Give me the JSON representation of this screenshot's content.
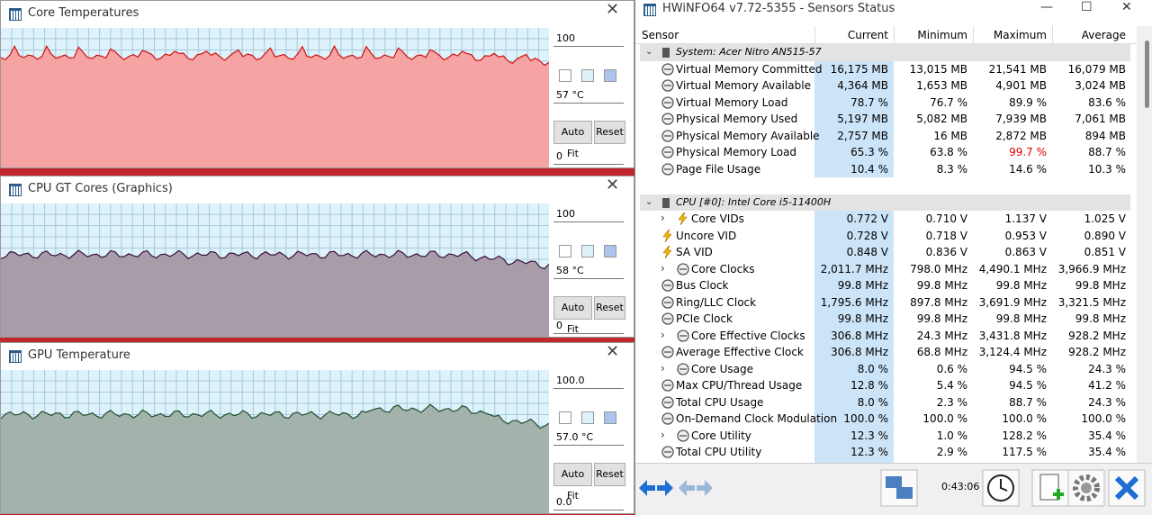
{
  "graphs": [
    {
      "title": "Core Temperatures",
      "max": "100",
      "current": "57 °C",
      "auto_fit": "Auto Fit",
      "reset": "Reset",
      "min": "0",
      "fill": "#f6a3a3",
      "line": "#d01010"
    },
    {
      "title": "CPU GT Cores (Graphics)",
      "max": "100",
      "current": "58 °C",
      "auto_fit": "Auto Fit",
      "reset": "Reset",
      "min": "0",
      "fill": "#a99ca9",
      "line": "#3a1040"
    },
    {
      "title": "GPU Temperature",
      "max": "100.0",
      "current": "57.0 °C",
      "auto_fit": "Auto Fit",
      "reset": "Reset",
      "min": "0.0",
      "fill": "#a3b2aa",
      "line": "#1f5030"
    }
  ],
  "sensors": {
    "title": "HWiNFO64 v7.72-5355 - Sensors Status",
    "columns": [
      "Sensor",
      "Current",
      "Minimum",
      "Maximum",
      "Average"
    ],
    "groups": [
      {
        "name": "System: Acer Nitro AN515-57",
        "rows": [
          {
            "cells": [
              "Virtual Memory Committed",
              "16,175 MB",
              "13,015 MB",
              "21,541 MB",
              "16,079 MB"
            ],
            "icon": "clock"
          },
          {
            "cells": [
              "Virtual Memory Available",
              "4,364 MB",
              "1,653 MB",
              "4,901 MB",
              "3,024 MB"
            ],
            "icon": "clock"
          },
          {
            "cells": [
              "Virtual Memory Load",
              "78.7 %",
              "76.7 %",
              "89.9 %",
              "83.6 %"
            ],
            "icon": "clock"
          },
          {
            "cells": [
              "Physical Memory Used",
              "5,197 MB",
              "5,082 MB",
              "7,939 MB",
              "7,061 MB"
            ],
            "icon": "clock"
          },
          {
            "cells": [
              "Physical Memory Available",
              "2,757 MB",
              "16 MB",
              "2,872 MB",
              "894 MB"
            ],
            "icon": "clock"
          },
          {
            "cells": [
              "Physical Memory Load",
              "65.3 %",
              "63.8 %",
              "99.7 %",
              "88.7 %"
            ],
            "icon": "clock",
            "alert": "maximum"
          },
          {
            "cells": [
              "Page File Usage",
              "10.4 %",
              "8.3 %",
              "14.6 %",
              "10.3 %"
            ],
            "icon": "clock"
          }
        ]
      },
      {
        "name": "CPU [#0]: Intel Core i5-11400H",
        "rows": [
          {
            "cells": [
              "Core VIDs",
              "0.772 V",
              "0.710 V",
              "1.137 V",
              "1.025 V"
            ],
            "icon": "bolt",
            "expand": true
          },
          {
            "cells": [
              "Uncore VID",
              "0.728 V",
              "0.718 V",
              "0.953 V",
              "0.890 V"
            ],
            "icon": "bolt"
          },
          {
            "cells": [
              "SA VID",
              "0.848 V",
              "0.836 V",
              "0.863 V",
              "0.851 V"
            ],
            "icon": "bolt"
          },
          {
            "cells": [
              "Core Clocks",
              "2,011.7 MHz",
              "798.0 MHz",
              "4,490.1 MHz",
              "3,966.9 MHz"
            ],
            "icon": "clock",
            "expand": true
          },
          {
            "cells": [
              "Bus Clock",
              "99.8 MHz",
              "99.8 MHz",
              "99.8 MHz",
              "99.8 MHz"
            ],
            "icon": "clock"
          },
          {
            "cells": [
              "Ring/LLC Clock",
              "1,795.6 MHz",
              "897.8 MHz",
              "3,691.9 MHz",
              "3,321.5 MHz"
            ],
            "icon": "clock"
          },
          {
            "cells": [
              "PCIe Clock",
              "99.8 MHz",
              "99.8 MHz",
              "99.8 MHz",
              "99.8 MHz"
            ],
            "icon": "clock"
          },
          {
            "cells": [
              "Core Effective Clocks",
              "306.8 MHz",
              "24.3 MHz",
              "3,431.8 MHz",
              "928.2 MHz"
            ],
            "icon": "clock",
            "expand": true
          },
          {
            "cells": [
              "Average Effective Clock",
              "306.8 MHz",
              "68.8 MHz",
              "3,124.4 MHz",
              "928.2 MHz"
            ],
            "icon": "clock"
          },
          {
            "cells": [
              "Core Usage",
              "8.0 %",
              "0.6 %",
              "94.5 %",
              "24.3 %"
            ],
            "icon": "clock",
            "expand": true
          },
          {
            "cells": [
              "Max CPU/Thread Usage",
              "12.8 %",
              "5.4 %",
              "94.5 %",
              "41.2 %"
            ],
            "icon": "clock"
          },
          {
            "cells": [
              "Total CPU Usage",
              "8.0 %",
              "2.3 %",
              "88.7 %",
              "24.3 %"
            ],
            "icon": "clock"
          },
          {
            "cells": [
              "On-Demand Clock Modulation",
              "100.0 %",
              "100.0 %",
              "100.0 %",
              "100.0 %"
            ],
            "icon": "clock"
          },
          {
            "cells": [
              "Core Utility",
              "12.3 %",
              "1.0 %",
              "128.2 %",
              "35.4 %"
            ],
            "icon": "clock",
            "expand": true
          },
          {
            "cells": [
              "Total CPU Utility",
              "12.3 %",
              "2.9 %",
              "117.5 %",
              "35.4 %"
            ],
            "icon": "clock"
          }
        ]
      }
    ]
  },
  "toolbar": {
    "time": "0:43:06"
  }
}
